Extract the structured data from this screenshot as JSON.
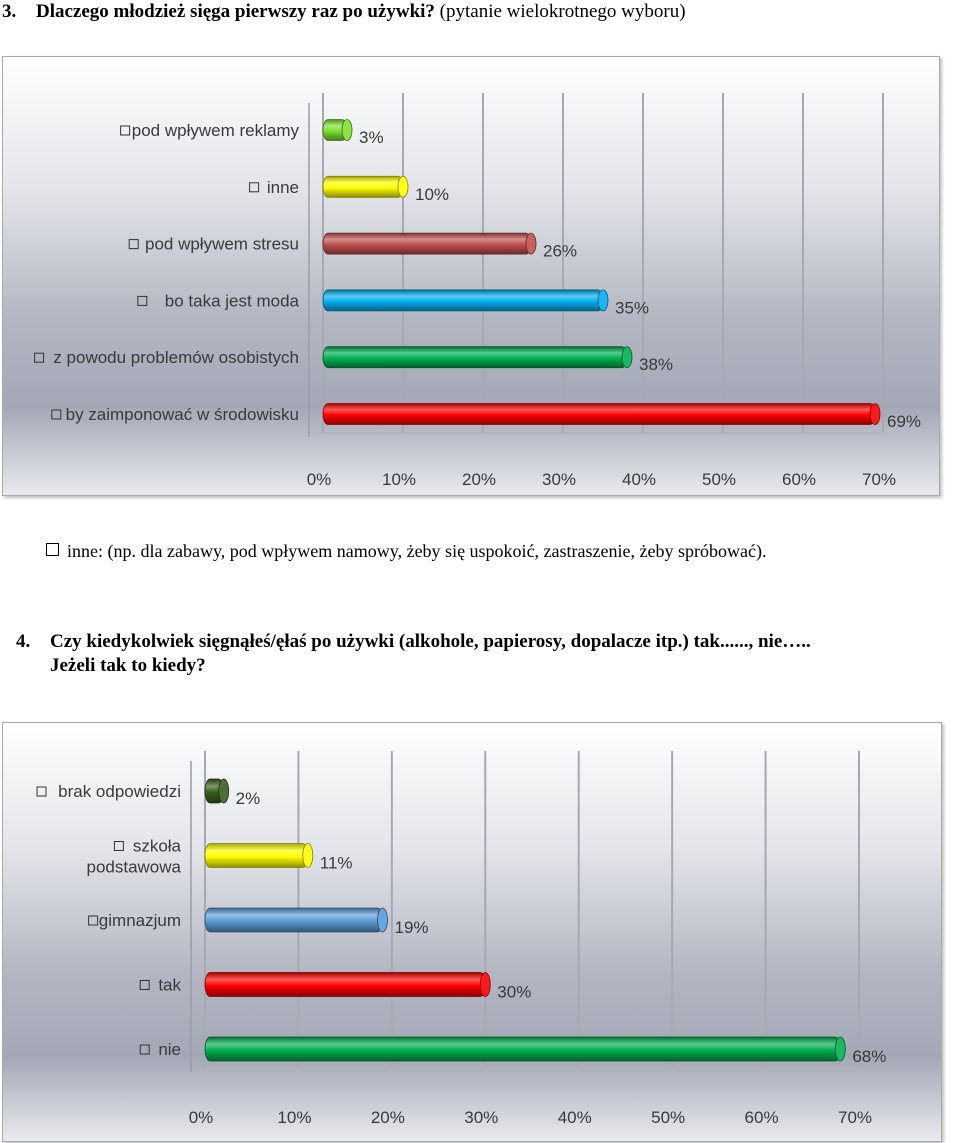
{
  "question3": {
    "number": "3.",
    "title": "Dlaczego młodzież sięga pierwszy raz po używki?",
    "subtitle": "(pytanie wielokrotnego wyboru)"
  },
  "note": {
    "text": "inne: (np. dla zabawy, pod wpływem namowy, żeby się uspokoić, zastraszenie, żeby spróbować)."
  },
  "question4": {
    "number": "4.",
    "line1": "Czy kiedykolwiek sięgnąłeś/ęłaś po używki (alkohole, papierosy, dopalacze itp.) tak......, nie…..",
    "line2": "Jeżeli tak to kiedy?"
  },
  "chart_data": [
    {
      "type": "bar",
      "orientation": "horizontal",
      "style": "3d-cylinder",
      "categories": [
        "pod wpływem reklamy",
        "inne",
        "pod wpływem stresu",
        "bo taka jest moda",
        "z powodu problemów osobistych",
        "by zaimponować w środowisku"
      ],
      "category_lines": [
        [
          "pod wpływem reklamy"
        ],
        [
          "inne"
        ],
        [
          "pod wpływem stresu"
        ],
        [
          "bo taka jest moda"
        ],
        [
          "z powodu problemów osobistych"
        ],
        [
          "by zaimponować w środowisku"
        ]
      ],
      "values": [
        3,
        10,
        26,
        35,
        38,
        69
      ],
      "data_labels": [
        "3%",
        "10%",
        "26%",
        "35%",
        "38%",
        "69%"
      ],
      "colors": [
        "#7ee030",
        "#ffff00",
        "#c0504d",
        "#00b0f0",
        "#00b050",
        "#ff0000"
      ],
      "xlim": [
        0,
        70
      ],
      "xticks": [
        "0%",
        "10%",
        "20%",
        "30%",
        "40%",
        "50%",
        "60%",
        "70%"
      ],
      "grid": true,
      "legend": "category-markers"
    },
    {
      "type": "bar",
      "orientation": "horizontal",
      "style": "3d-cylinder",
      "categories": [
        "brak odpowiedzi",
        "szkoła podstawowa",
        "gimnazjum",
        "tak",
        "nie"
      ],
      "category_lines": [
        [
          "brak odpowiedzi"
        ],
        [
          "szkoła",
          "podstawowa"
        ],
        [
          "gimnazjum"
        ],
        [
          "tak"
        ],
        [
          "nie"
        ]
      ],
      "values": [
        2,
        11,
        19,
        30,
        68
      ],
      "data_labels": [
        "2%",
        "11%",
        "19%",
        "30%",
        "68%"
      ],
      "colors": [
        "#3b5e1e",
        "#ffff00",
        "#5b9bd5",
        "#ff0000",
        "#00b050"
      ],
      "xlim": [
        0,
        70
      ],
      "xticks": [
        "0%",
        "10%",
        "20%",
        "30%",
        "40%",
        "50%",
        "60%",
        "70%"
      ],
      "grid": true,
      "legend": "category-markers"
    }
  ]
}
